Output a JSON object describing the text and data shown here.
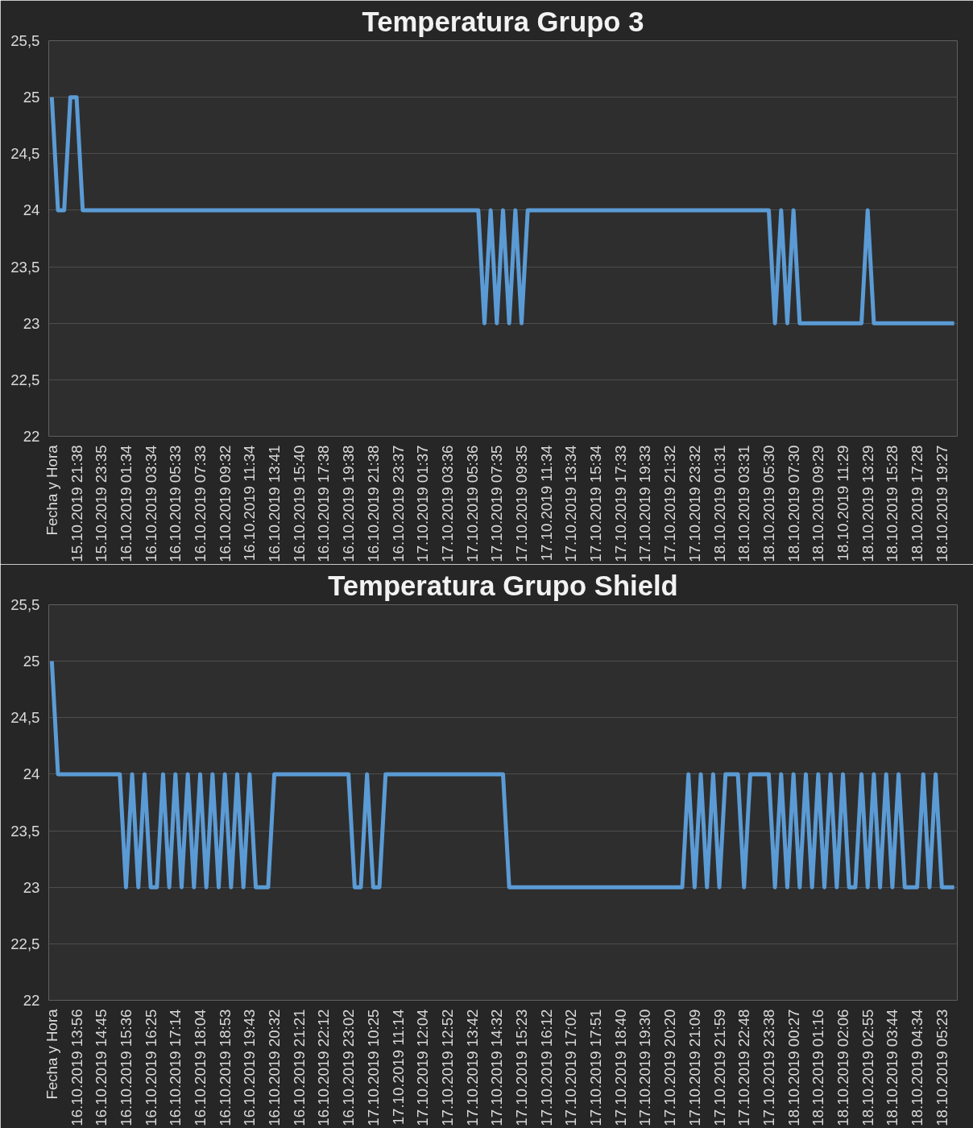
{
  "chart_data": [
    {
      "type": "line",
      "title": "Temperatura Grupo 3",
      "ylim": [
        22,
        25.5
      ],
      "yticks": [
        22,
        {
          "value": 22.5,
          "label": "22,5"
        },
        23,
        {
          "value": 23.5,
          "label": "23,5"
        },
        24,
        {
          "value": 24.5,
          "label": "24,5"
        },
        25,
        {
          "value": 25.5,
          "label": "25,5"
        }
      ],
      "grid": "y",
      "categories": [
        "Fecha y Hora",
        null,
        null,
        null,
        "15.10.2019 21:38",
        null,
        null,
        null,
        "15.10.2019 23:35",
        null,
        null,
        null,
        "16.10.2019 01:34",
        null,
        null,
        null,
        "16.10.2019 03:34",
        null,
        null,
        null,
        "16.10.2019 05:33",
        null,
        null,
        null,
        "16.10.2019 07:33",
        null,
        null,
        null,
        "16.10.2019 09:32",
        null,
        null,
        null,
        "16.10.2019 11:34",
        null,
        null,
        null,
        "16.10.2019 13:41",
        null,
        null,
        null,
        "16.10.2019 15:40",
        null,
        null,
        null,
        "16.10.2019 17:38",
        null,
        null,
        null,
        "16.10.2019 19:38",
        null,
        null,
        null,
        "16.10.2019 21:38",
        null,
        null,
        null,
        "16.10.2019 23:37",
        null,
        null,
        null,
        "17.10.2019 01:37",
        null,
        null,
        null,
        "17.10.2019 03:36",
        null,
        null,
        null,
        "17.10.2019 05:36",
        null,
        null,
        null,
        "17.10.2019 07:35",
        null,
        null,
        null,
        "17.10.2019 09:35",
        null,
        null,
        null,
        "17.10.2019 11:34",
        null,
        null,
        null,
        "17.10.2019 13:34",
        null,
        null,
        null,
        "17.10.2019 15:34",
        null,
        null,
        null,
        "17.10.2019 17:33",
        null,
        null,
        null,
        "17.10.2019 19:33",
        null,
        null,
        null,
        "17.10.2019 21:32",
        null,
        null,
        null,
        "17.10.2019 23:32",
        null,
        null,
        null,
        "18.10.2019 01:31",
        null,
        null,
        null,
        "18.10.2019 03:31",
        null,
        null,
        null,
        "18.10.2019 05:30",
        null,
        null,
        null,
        "18.10.2019 07:30",
        null,
        null,
        null,
        "18.10.2019 09:29",
        null,
        null,
        null,
        "18.10.2019 11:29",
        null,
        null,
        null,
        "18.10.2019 13:29",
        null,
        null,
        null,
        "18.10.2019 15:28",
        null,
        null,
        null,
        "18.10.2019 17:28",
        null,
        null,
        null,
        "18.10.2019 19:27",
        null,
        null
      ],
      "series": [
        {
          "color": "#5b9bd5",
          "values": [
            25,
            24,
            24,
            25,
            25,
            24,
            24,
            24,
            24,
            24,
            24,
            24,
            24,
            24,
            24,
            24,
            24,
            24,
            24,
            24,
            24,
            24,
            24,
            24,
            24,
            24,
            24,
            24,
            24,
            24,
            24,
            24,
            24,
            24,
            24,
            24,
            24,
            24,
            24,
            24,
            24,
            24,
            24,
            24,
            24,
            24,
            24,
            24,
            24,
            24,
            24,
            24,
            24,
            24,
            24,
            24,
            24,
            24,
            24,
            24,
            24,
            24,
            24,
            24,
            24,
            24,
            24,
            24,
            24,
            24,
            23,
            24,
            23,
            24,
            23,
            24,
            23,
            24,
            24,
            24,
            24,
            24,
            24,
            24,
            24,
            24,
            24,
            24,
            24,
            24,
            24,
            24,
            24,
            24,
            24,
            24,
            24,
            24,
            24,
            24,
            24,
            24,
            24,
            24,
            24,
            24,
            24,
            24,
            24,
            24,
            24,
            24,
            24,
            24,
            24,
            24,
            24,
            23,
            24,
            23,
            24,
            23,
            23,
            23,
            23,
            23,
            23,
            23,
            23,
            23,
            23,
            23,
            24,
            23,
            23,
            23,
            23,
            23,
            23,
            23,
            23,
            23,
            23,
            23,
            23,
            23,
            23
          ]
        }
      ]
    },
    {
      "type": "line",
      "title": "Temperatura Grupo Shield",
      "ylim": [
        22,
        25.5
      ],
      "yticks": [
        22,
        {
          "value": 22.5,
          "label": "22,5"
        },
        23,
        {
          "value": 23.5,
          "label": "23,5"
        },
        24,
        {
          "value": 24.5,
          "label": "24,5"
        },
        25,
        {
          "value": 25.5,
          "label": "25,5"
        }
      ],
      "grid": "y",
      "categories": [
        "Fecha y Hora",
        null,
        null,
        null,
        "16.10.2019 13:56",
        null,
        null,
        null,
        "16.10.2019 14:45",
        null,
        null,
        null,
        "16.10.2019 15:36",
        null,
        null,
        null,
        "16.10.2019 16:25",
        null,
        null,
        null,
        "16.10.2019 17:14",
        null,
        null,
        null,
        "16.10.2019 18:04",
        null,
        null,
        null,
        "16.10.2019 18:53",
        null,
        null,
        null,
        "16.10.2019 19:43",
        null,
        null,
        null,
        "16.10.2019 20:32",
        null,
        null,
        null,
        "16.10.2019 21:21",
        null,
        null,
        null,
        "16.10.2019 22:12",
        null,
        null,
        null,
        "16.10.2019 23:02",
        null,
        null,
        null,
        "17.10.2019 10:25",
        null,
        null,
        null,
        "17.10.2019 11:14",
        null,
        null,
        null,
        "17.10.2019 12:04",
        null,
        null,
        null,
        "17.10.2019 12:52",
        null,
        null,
        null,
        "17.10.2019 13:42",
        null,
        null,
        null,
        "17.10.2019 14:32",
        null,
        null,
        null,
        "17.10.2019 15:23",
        null,
        null,
        null,
        "17.10.2019 16:12",
        null,
        null,
        null,
        "17.10.2019 17:02",
        null,
        null,
        null,
        "17.10.2019 17:51",
        null,
        null,
        null,
        "17.10.2019 18:40",
        null,
        null,
        null,
        "17.10.2019 19:30",
        null,
        null,
        null,
        "17.10.2019 20:20",
        null,
        null,
        null,
        "17.10.2019 21:09",
        null,
        null,
        null,
        "17.10.2019 21:59",
        null,
        null,
        null,
        "17.10.2019 22:48",
        null,
        null,
        null,
        "17.10.2019 23:38",
        null,
        null,
        null,
        "18.10.2019 00:27",
        null,
        null,
        null,
        "18.10.2019 01:16",
        null,
        null,
        null,
        "18.10.2019 02:06",
        null,
        null,
        null,
        "18.10.2019 02:55",
        null,
        null,
        null,
        "18.10.2019 03:44",
        null,
        null,
        null,
        "18.10.2019 04:34",
        null,
        null,
        null,
        "18.10.2019 05:23",
        null,
        null
      ],
      "series": [
        {
          "color": "#5b9bd5",
          "values": [
            25,
            24,
            24,
            24,
            24,
            24,
            24,
            24,
            24,
            24,
            24,
            24,
            23,
            24,
            23,
            24,
            23,
            23,
            24,
            23,
            24,
            23,
            24,
            23,
            24,
            23,
            24,
            23,
            24,
            23,
            24,
            23,
            24,
            23,
            23,
            23,
            24,
            24,
            24,
            24,
            24,
            24,
            24,
            24,
            24,
            24,
            24,
            24,
            24,
            23,
            23,
            24,
            23,
            23,
            24,
            24,
            24,
            24,
            24,
            24,
            24,
            24,
            24,
            24,
            24,
            24,
            24,
            24,
            24,
            24,
            24,
            24,
            24,
            24,
            23,
            23,
            23,
            23,
            23,
            23,
            23,
            23,
            23,
            23,
            23,
            23,
            23,
            23,
            23,
            23,
            23,
            23,
            23,
            23,
            23,
            23,
            23,
            23,
            23,
            23,
            23,
            23,
            23,
            24,
            23,
            24,
            23,
            24,
            23,
            24,
            24,
            24,
            23,
            24,
            24,
            24,
            24,
            23,
            24,
            23,
            24,
            23,
            24,
            23,
            24,
            23,
            24,
            23,
            24,
            23,
            23,
            24,
            23,
            24,
            23,
            24,
            23,
            24,
            23,
            23,
            23,
            24,
            23,
            24,
            23,
            23,
            23
          ]
        }
      ]
    }
  ]
}
